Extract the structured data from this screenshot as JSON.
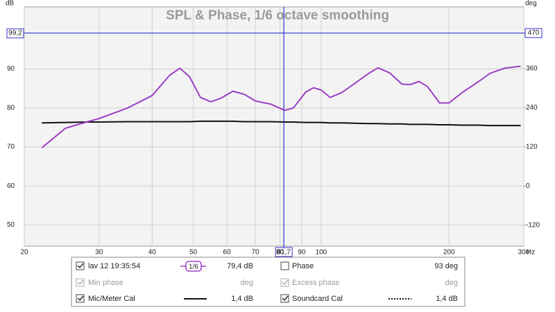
{
  "chart_data": {
    "type": "line",
    "title": "SPL & Phase, 1/6 octave smoothing",
    "ylabel": "dB",
    "y2label": "deg",
    "xlabel": "Hz",
    "log_x": true,
    "grid": true,
    "x": [
      22,
      25,
      28,
      30,
      35,
      40,
      44,
      46.5,
      49,
      52,
      55,
      58,
      62,
      66,
      70,
      76,
      82,
      86,
      92,
      96,
      100,
      105,
      112,
      120,
      130,
      136,
      145,
      155,
      162,
      170,
      178,
      190,
      200,
      215,
      235,
      250,
      270,
      295
    ],
    "series": [
      {
        "name": "lav 12 19:35:54",
        "color": "#9a3fc4",
        "readout": "79,4 dB",
        "values": [
          69.8,
          74.8,
          76.4,
          77.3,
          80,
          83.2,
          88.4,
          90.2,
          88,
          82.7,
          81.6,
          82.5,
          84.3,
          83.5,
          81.8,
          81,
          79.4,
          80,
          84.1,
          85.2,
          84.6,
          82.7,
          84,
          86.3,
          89,
          90.3,
          89,
          86.1,
          86,
          86.8,
          85.5,
          81.3,
          81.3,
          84,
          86.8,
          88.9,
          90.2,
          90.7
        ]
      },
      {
        "name": "Mic/Meter Cal",
        "color": "#111111",
        "readout": "1,4 dB",
        "values": [
          76.2,
          76.3,
          76.4,
          76.4,
          76.5,
          76.5,
          76.5,
          76.5,
          76.5,
          76.6,
          76.6,
          76.6,
          76.6,
          76.5,
          76.5,
          76.5,
          76.4,
          76.4,
          76.3,
          76.3,
          76.3,
          76.2,
          76.2,
          76.1,
          76.0,
          76.0,
          75.9,
          75.9,
          75.8,
          75.8,
          75.8,
          75.7,
          75.7,
          75.6,
          75.6,
          75.5,
          75.5,
          75.5
        ]
      }
    ],
    "other_traces": [
      {
        "name": "Phase",
        "readout": "93 deg"
      },
      {
        "name": "Min phase",
        "readout": "deg"
      },
      {
        "name": "Excess phase",
        "readout": "deg"
      },
      {
        "name": "Soundcard Cal",
        "readout": "1,4 dB"
      }
    ],
    "smoothing": "1/6",
    "xlim": [
      20,
      300
    ],
    "xticks": [
      20,
      30,
      40,
      50,
      60,
      70,
      80,
      90,
      100,
      200,
      300
    ],
    "ylim": [
      44.6,
      105.9
    ],
    "yticks": [
      50,
      60,
      70,
      80,
      90
    ],
    "y2lim": [
      -184,
      549
    ],
    "y2ticks": [
      -120,
      0,
      120,
      240,
      360
    ],
    "cursor": {
      "x": {
        "value": 81.7,
        "label": "81,7"
      },
      "y": {
        "value": 99.2,
        "label": "99,2"
      },
      "y2": {
        "value": 470,
        "label": "470"
      },
      "color": "#3333cc"
    }
  }
}
